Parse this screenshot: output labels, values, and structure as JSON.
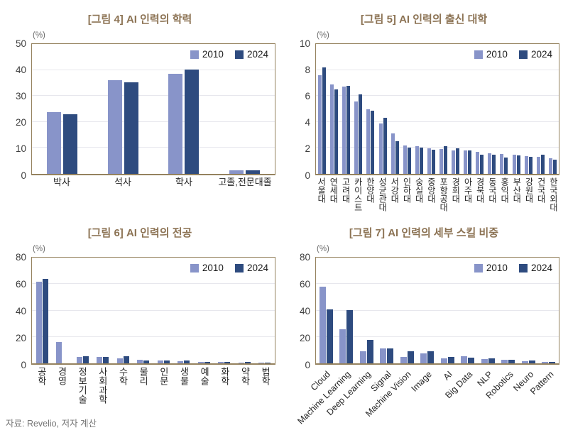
{
  "percent_label": "(%)",
  "source_note": "자료: Revelio, 저자 계산",
  "colors": {
    "series_2010": "#8894c9",
    "series_2024": "#2e4b7f",
    "frame": "#95825e",
    "title": "#8c7354",
    "grid": "#e7e7ed"
  },
  "chart_data": [
    {
      "type": "bar",
      "title": "[그림 4] AI 인력의 학력",
      "ylabel": "(%)",
      "ylim": [
        0,
        50
      ],
      "yticks": [
        0,
        10,
        20,
        30,
        40,
        50
      ],
      "grid": true,
      "legend_position": "top-right",
      "label_style": "horizontal",
      "categories": [
        "박사",
        "석사",
        "학사",
        "고졸,전문대졸"
      ],
      "series": [
        {
          "name": "2010",
          "values": [
            23.8,
            36.2,
            38.5,
            1.5
          ]
        },
        {
          "name": "2024",
          "values": [
            23.0,
            35.2,
            40.2,
            1.5
          ]
        }
      ]
    },
    {
      "type": "bar",
      "title": "[그림 5] AI 인력의 출신 대학",
      "ylabel": "(%)",
      "ylim": [
        0,
        10
      ],
      "yticks": [
        0,
        2,
        4,
        6,
        8,
        10
      ],
      "grid": true,
      "legend_position": "top-right",
      "label_style": "vertical",
      "categories": [
        "서울대",
        "연세대",
        "고려대",
        "카이스트",
        "한양대",
        "성균관대",
        "서강대",
        "인하대",
        "숭실대",
        "중앙대",
        "포항공대",
        "경희대",
        "아주대",
        "경북대",
        "동국대",
        "홍익대",
        "부산대",
        "강원대",
        "건국대",
        "한국외대"
      ],
      "series": [
        {
          "name": "2010",
          "values": [
            7.6,
            6.9,
            6.7,
            5.6,
            5.0,
            3.9,
            3.1,
            2.2,
            2.15,
            1.95,
            1.9,
            1.8,
            1.8,
            1.7,
            1.6,
            1.55,
            1.45,
            1.35,
            1.3,
            1.2
          ]
        },
        {
          "name": "2024",
          "values": [
            8.2,
            6.5,
            6.75,
            6.1,
            4.85,
            4.3,
            2.5,
            2.05,
            2.0,
            1.85,
            2.15,
            1.95,
            1.8,
            1.5,
            1.5,
            1.25,
            1.4,
            1.3,
            1.45,
            1.1
          ]
        }
      ]
    },
    {
      "type": "bar",
      "title": "[그림 6] AI 인력의 전공",
      "ylabel": "(%)",
      "ylim": [
        0,
        80
      ],
      "yticks": [
        0,
        20,
        40,
        60,
        80
      ],
      "grid": true,
      "legend_position": "top-right",
      "label_style": "vertical",
      "categories": [
        "공학",
        "경영",
        "정보기술",
        "사회과학",
        "수학",
        "물리",
        "인문",
        "생물",
        "예술",
        "화학",
        "약학",
        "법학"
      ],
      "series": [
        {
          "name": "2010",
          "values": [
            62,
            16,
            5.0,
            4.8,
            3.5,
            2.5,
            2.2,
            1.7,
            1.0,
            1.0,
            0.8,
            0.4
          ]
        },
        {
          "name": "2024",
          "values": [
            64,
            0,
            5.5,
            5.0,
            5.5,
            2.0,
            2.2,
            1.9,
            1.3,
            0.9,
            1.0,
            0.4
          ]
        }
      ]
    },
    {
      "type": "bar",
      "title": "[그림 7] AI 인력의 세부 스킬 비중",
      "ylabel": "(%)",
      "ylim": [
        0,
        80
      ],
      "yticks": [
        0,
        20,
        40,
        60,
        80
      ],
      "grid": true,
      "legend_position": "top-right",
      "label_style": "rotated",
      "categories": [
        "Cloud",
        "Machine Learning",
        "Deep Learning",
        "Signal",
        "Machine Vision",
        "Image",
        "AI",
        "Big Data",
        "NLP",
        "Robotics",
        "Neuro",
        "Pattern"
      ],
      "series": [
        {
          "name": "2010",
          "values": [
            58,
            26,
            9,
            11.5,
            5,
            7.5,
            3.5,
            5.5,
            3,
            2.5,
            1.5,
            1
          ]
        },
        {
          "name": "2024",
          "values": [
            41,
            40.5,
            17.5,
            11.5,
            9,
            9,
            4.8,
            4.5,
            3.5,
            2.5,
            2,
            1
          ]
        }
      ]
    }
  ]
}
